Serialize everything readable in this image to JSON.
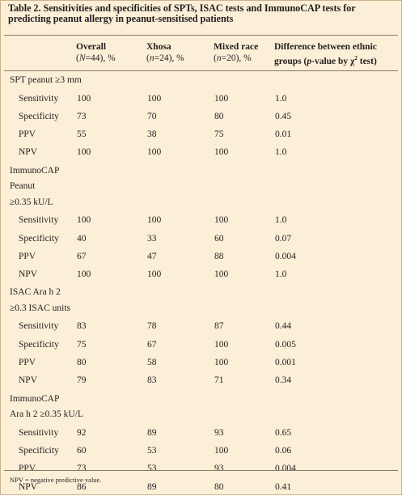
{
  "table": {
    "title_line1": "Table 2. Sensitivities and specificities of SPTs, ISAC tests and ImmunoCAP tests for",
    "title_line2": "predicting peanut allergy in peanut-sensitised patients",
    "columns": {
      "overall": {
        "label": "Overall",
        "sub_italic": "N",
        "sub_rest": "=44), %"
      },
      "xhosa": {
        "label": "Xhosa",
        "sub_italic": "n",
        "sub_rest": "=24), %"
      },
      "mixed": {
        "label": "Mixed race",
        "sub_italic": "n",
        "sub_rest": "=20), %"
      },
      "diff": {
        "label": "Difference between ethnic",
        "sub_pre": "groups (",
        "sub_italic": "p",
        "sub_mid": "-value by χ",
        "sub_sup": "2",
        "sub_post": " test)"
      }
    },
    "groups": [
      {
        "label_lines": [
          "SPT peanut ≥3 mm"
        ],
        "rows": [
          {
            "measure": "Sensitivity",
            "overall": "100",
            "xhosa": "100",
            "mixed": "100",
            "diff": "1.0"
          },
          {
            "measure": "Specificity",
            "overall": "73",
            "xhosa": "70",
            "mixed": "80",
            "diff": "0.45"
          },
          {
            "measure": "PPV",
            "overall": "55",
            "xhosa": "38",
            "mixed": "75",
            "diff": "0.01"
          },
          {
            "measure": "NPV",
            "overall": "100",
            "xhosa": "100",
            "mixed": "100",
            "diff": "1.0"
          }
        ]
      },
      {
        "label_lines": [
          "ImmunoCAP",
          "Peanut",
          "≥0.35 kU/L"
        ],
        "rows": [
          {
            "measure": "Sensitivity",
            "overall": "100",
            "xhosa": "100",
            "mixed": "100",
            "diff": "1.0"
          },
          {
            "measure": "Specificity",
            "overall": "40",
            "xhosa": "33",
            "mixed": "60",
            "diff": "0.07"
          },
          {
            "measure": "PPV",
            "overall": "67",
            "xhosa": "47",
            "mixed": "88",
            "diff": "0.004"
          },
          {
            "measure": "NPV",
            "overall": "100",
            "xhosa": "100",
            "mixed": "100",
            "diff": "1.0"
          }
        ]
      },
      {
        "label_lines": [
          "ISAC Ara h 2",
          "≥0.3 ISAC units"
        ],
        "rows": [
          {
            "measure": "Sensitivity",
            "overall": "83",
            "xhosa": "78",
            "mixed": "87",
            "diff": "0.44"
          },
          {
            "measure": "Specificity",
            "overall": "75",
            "xhosa": "67",
            "mixed": "100",
            "diff": "0.005"
          },
          {
            "measure": "PPV",
            "overall": "80",
            "xhosa": "58",
            "mixed": "100",
            "diff": "0.001"
          },
          {
            "measure": "NPV",
            "overall": "79",
            "xhosa": "83",
            "mixed": "71",
            "diff": "0.34"
          }
        ]
      },
      {
        "label_lines": [
          "ImmunoCAP",
          "Ara h 2 ≥0.35 kU/L"
        ],
        "rows": [
          {
            "measure": "Sensitivity",
            "overall": "92",
            "xhosa": "89",
            "mixed": "93",
            "diff": "0.65"
          },
          {
            "measure": "Specificity",
            "overall": "60",
            "xhosa": "53",
            "mixed": "100",
            "diff": "0.06"
          },
          {
            "measure": "PPV",
            "overall": "73",
            "xhosa": "53",
            "mixed": "93",
            "diff": "0.004"
          },
          {
            "measure": "NPV",
            "overall": "86",
            "xhosa": "89",
            "mixed": "80",
            "diff": "0.41"
          }
        ]
      }
    ],
    "footnote": "NPV = negative predictive value."
  }
}
